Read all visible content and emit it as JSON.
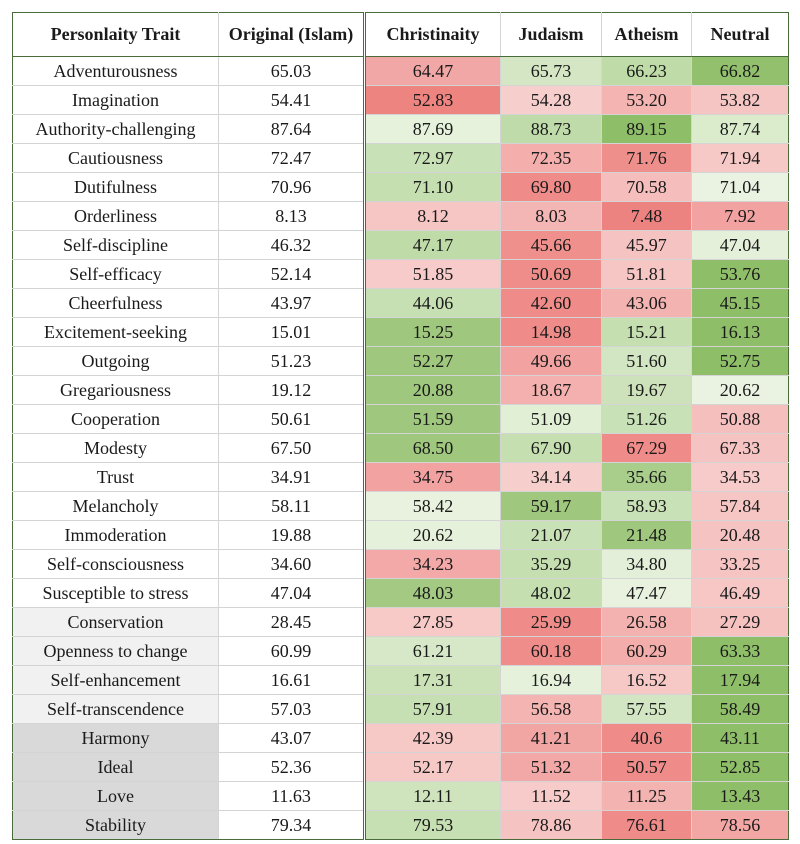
{
  "chart_data": {
    "type": "table",
    "columns": [
      "Personlaity Trait",
      "Original (Islam)",
      "Christinaity",
      "Judaism",
      "Atheism",
      "Neutral"
    ],
    "groups": [
      {
        "shade": "#ffffff",
        "rows": [
          {
            "trait": "Adventurousness",
            "values": [
              "65.03",
              "64.47",
              "65.73",
              "66.23",
              "66.82"
            ]
          },
          {
            "trait": "Imagination",
            "values": [
              "54.41",
              "52.83",
              "54.28",
              "53.20",
              "53.82"
            ]
          },
          {
            "trait": "Authority-challenging",
            "values": [
              "87.64",
              "87.69",
              "88.73",
              "89.15",
              "87.74"
            ]
          },
          {
            "trait": "Cautiousness",
            "values": [
              "72.47",
              "72.97",
              "72.35",
              "71.76",
              "71.94"
            ]
          },
          {
            "trait": "Dutifulness",
            "values": [
              "70.96",
              "71.10",
              "69.80",
              "70.58",
              "71.04"
            ]
          },
          {
            "trait": "Orderliness",
            "values": [
              "8.13",
              "8.12",
              "8.03",
              "7.48",
              "7.92"
            ]
          },
          {
            "trait": "Self-discipline",
            "values": [
              "46.32",
              "47.17",
              "45.66",
              "45.97",
              "47.04"
            ]
          },
          {
            "trait": "Self-efficacy",
            "values": [
              "52.14",
              "51.85",
              "50.69",
              "51.81",
              "53.76"
            ]
          },
          {
            "trait": "Cheerfulness",
            "values": [
              "43.97",
              "44.06",
              "42.60",
              "43.06",
              "45.15"
            ]
          },
          {
            "trait": "Excitement-seeking",
            "values": [
              "15.01",
              "15.25",
              "14.98",
              "15.21",
              "16.13"
            ]
          },
          {
            "trait": "Outgoing",
            "values": [
              "51.23",
              "52.27",
              "49.66",
              "51.60",
              "52.75"
            ]
          },
          {
            "trait": "Gregariousness",
            "values": [
              "19.12",
              "20.88",
              "18.67",
              "19.67",
              "20.62"
            ]
          },
          {
            "trait": "Cooperation",
            "values": [
              "50.61",
              "51.59",
              "51.09",
              "51.26",
              "50.88"
            ]
          },
          {
            "trait": "Modesty",
            "values": [
              "67.50",
              "68.50",
              "67.90",
              "67.29",
              "67.33"
            ]
          },
          {
            "trait": "Trust",
            "values": [
              "34.91",
              "34.75",
              "34.14",
              "35.66",
              "34.53"
            ]
          },
          {
            "trait": "Melancholy",
            "values": [
              "58.11",
              "58.42",
              "59.17",
              "58.93",
              "57.84"
            ]
          },
          {
            "trait": "Immoderation",
            "values": [
              "19.88",
              "20.62",
              "21.07",
              "21.48",
              "20.48"
            ]
          },
          {
            "trait": "Self-consciousness",
            "values": [
              "34.60",
              "34.23",
              "35.29",
              "34.80",
              "33.25"
            ]
          },
          {
            "trait": "Susceptible to stress",
            "values": [
              "47.04",
              "48.03",
              "48.02",
              "47.47",
              "46.49"
            ]
          }
        ]
      },
      {
        "shade": "#f1f1f1",
        "rows": [
          {
            "trait": "Conservation",
            "values": [
              "28.45",
              "27.85",
              "25.99",
              "26.58",
              "27.29"
            ]
          },
          {
            "trait": "Openness to change",
            "values": [
              "60.99",
              "61.21",
              "60.18",
              "60.29",
              "63.33"
            ]
          },
          {
            "trait": "Self-enhancement",
            "values": [
              "16.61",
              "17.31",
              "16.94",
              "16.52",
              "17.94"
            ]
          },
          {
            "trait": "Self-transcendence",
            "values": [
              "57.03",
              "57.91",
              "56.58",
              "57.55",
              "58.49"
            ]
          }
        ]
      },
      {
        "shade": "#d9d9d9",
        "rows": [
          {
            "trait": "Harmony",
            "values": [
              "43.07",
              "42.39",
              "41.21",
              "40.6",
              "43.11"
            ]
          },
          {
            "trait": "Ideal",
            "values": [
              "52.36",
              "52.17",
              "51.32",
              "50.57",
              "52.85"
            ]
          },
          {
            "trait": "Love",
            "values": [
              "11.63",
              "12.11",
              "11.52",
              "11.25",
              "13.43"
            ]
          },
          {
            "trait": "Stability",
            "values": [
              "79.34",
              "79.53",
              "78.86",
              "76.61",
              "78.56"
            ]
          }
        ]
      }
    ],
    "cell_colors": [
      [
        "#f1a7a5",
        "#d4e6c4",
        "#bedba8",
        "#93c06d"
      ],
      [
        "#ed8480",
        "#f6cfcd",
        "#f3b4b2",
        "#f5c5c3"
      ],
      [
        "#e6f2dc",
        "#bfdbaa",
        "#8fbe68",
        "#dbeccd"
      ],
      [
        "#c9e1b6",
        "#f4aeac",
        "#ef8f8c",
        "#f6c8c6"
      ],
      [
        "#c5dfb0",
        "#ef8c89",
        "#f5bebc",
        "#eaf3e1"
      ],
      [
        "#f6c6c4",
        "#f3b6b4",
        "#ed8380",
        "#f2a3a1"
      ],
      [
        "#bfdba8",
        "#ef908d",
        "#f5c4c2",
        "#e4f0d9"
      ],
      [
        "#f7cbc9",
        "#ef8d8a",
        "#f5c6c4",
        "#8fbe68"
      ],
      [
        "#c7e0b3",
        "#ef8b88",
        "#f3b3b1",
        "#8fbe68"
      ],
      [
        "#9fc77d",
        "#ef8c89",
        "#c5dfb0",
        "#8fbe68"
      ],
      [
        "#9fc77d",
        "#f2a3a1",
        "#d3e6c3",
        "#8fbe68"
      ],
      [
        "#9fc77d",
        "#f4b0ae",
        "#cde2bb",
        "#eaf3e1"
      ],
      [
        "#9fc77d",
        "#e1efd4",
        "#c9e1b6",
        "#f5bfbd"
      ],
      [
        "#9fc77d",
        "#c5dfb0",
        "#ef8c89",
        "#f5c3c1"
      ],
      [
        "#f2a3a1",
        "#f6cecc",
        "#a9cd8b",
        "#f6cbc9"
      ],
      [
        "#e8f2de",
        "#9fc77d",
        "#c9e1b6",
        "#f6c6c4"
      ],
      [
        "#e6f1dc",
        "#c9e1b6",
        "#9fc77d",
        "#f5c3c1"
      ],
      [
        "#f3a9a7",
        "#c5dfb0",
        "#e3efd8",
        "#f6c4c2"
      ],
      [
        "#a3c983",
        "#c5dfb0",
        "#e8f2de",
        "#f6c7c5"
      ],
      [
        "#f7c9c7",
        "#ef8c89",
        "#f3b1af",
        "#f5c2c0"
      ],
      [
        "#d6e8c8",
        "#ef8d8a",
        "#f3adab",
        "#8fbe68"
      ],
      [
        "#cbe1b8",
        "#e5f1db",
        "#f6c9c7",
        "#8fbe68"
      ],
      [
        "#c7e0b3",
        "#f4b4b2",
        "#d3e6c3",
        "#8fbe68"
      ],
      [
        "#f6c9c7",
        "#f2a6a4",
        "#ef8c89",
        "#8fbe68"
      ],
      [
        "#f6c9c7",
        "#f2a8a6",
        "#ef8c89",
        "#8fbe68"
      ],
      [
        "#cfe4bd",
        "#f6cbc9",
        "#f3b3b1",
        "#8fbe68"
      ],
      [
        "#c7e0b3",
        "#f5c3c1",
        "#ef8c89",
        "#f2a7a5"
      ]
    ]
  }
}
